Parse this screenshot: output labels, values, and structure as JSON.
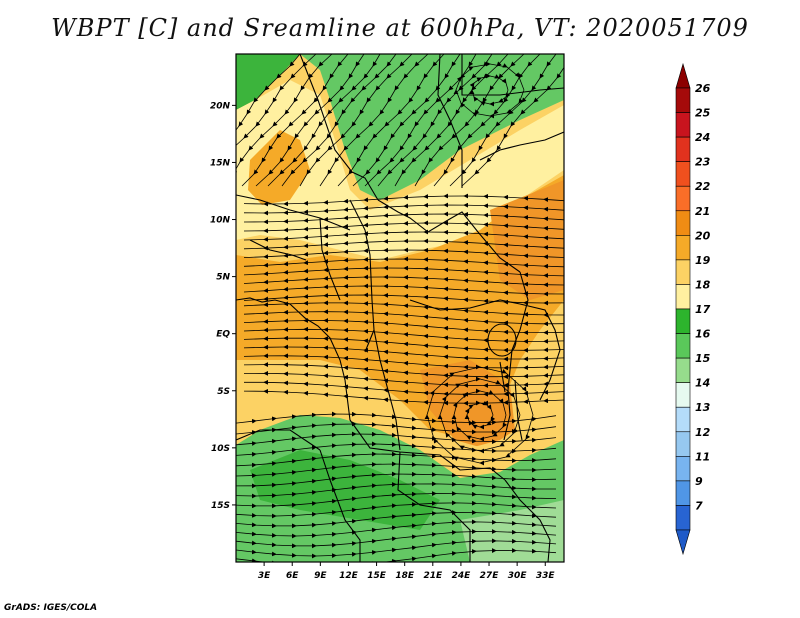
{
  "title": "WBPT [C] and Sreamline at 600hPa, VT: 2020051709",
  "credit": "GrADS: IGES/COLA",
  "map": {
    "lon_labels": [
      "3E",
      "6E",
      "9E",
      "12E",
      "15E",
      "18E",
      "21E",
      "24E",
      "27E",
      "30E",
      "33E"
    ],
    "lat_labels": [
      "20N",
      "15N",
      "10N",
      "5N",
      "EQ",
      "5S",
      "10S",
      "15S"
    ],
    "lon_range": [
      0,
      35
    ],
    "lat_range": [
      -20,
      24.5
    ]
  },
  "colorbar": {
    "labels": [
      "26",
      "25",
      "24",
      "23",
      "22",
      "21",
      "20",
      "19",
      "18",
      "17",
      "16",
      "15",
      "14",
      "13",
      "12",
      "11",
      "9",
      "7"
    ],
    "colors": [
      "#a50a0a",
      "#c8141e",
      "#e1321e",
      "#f0501e",
      "#fa6e28",
      "#f08c14",
      "#f5aa28",
      "#fcd264",
      "#fff0a0",
      "#2db42d",
      "#5ac85a",
      "#96dc8c",
      "#e6faf0",
      "#b4dcfa",
      "#96c8f0",
      "#78b4f0",
      "#5096e6",
      "#2864d2"
    ],
    "top_triangle_color": "#8c0000",
    "bottom_triangle_color": "#1e5ac8"
  },
  "field_colors": {
    "green_dark": "#3cb43c",
    "green": "#64c864",
    "green_light": "#a0dc96",
    "yellow": "#fff0a0",
    "tan": "#fcd264",
    "orange": "#f5aa28",
    "orange_dark": "#f09628"
  }
}
